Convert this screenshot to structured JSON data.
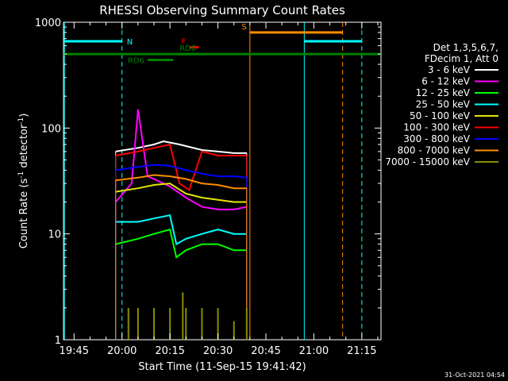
{
  "chart_data": {
    "type": "line",
    "title": "RHESSI Observing Summary Count Rates",
    "xlabel": "Start Time (11-Sep-15 19:41:42)",
    "ylabel_main": "Count Rate (s",
    "ylabel_sup1": "-1",
    "ylabel_mid": " detector",
    "ylabel_sup2": "-1",
    "ylabel_end": ")",
    "yscale": "log",
    "ylim": [
      1,
      1000
    ],
    "xlim": [
      "19:41:42",
      "21:21:00"
    ],
    "x_ticks": [
      "19:45",
      "20:00",
      "20:15",
      "20:30",
      "20:45",
      "21:00",
      "21:15"
    ],
    "y_ticks": [
      "1",
      "10",
      "100",
      "1000"
    ],
    "footer_date": "31-Oct-2021 04:54",
    "legend": {
      "header": [
        "Det 1,3,5,6,7,",
        "FDecim 1, Att 0"
      ],
      "entries": [
        {
          "label": "3 - 6 keV",
          "color": "#ffffff"
        },
        {
          "label": "6 - 12 keV",
          "color": "#ff00ff"
        },
        {
          "label": "12 - 25 keV",
          "color": "#00ff00"
        },
        {
          "label": "25 - 50 keV",
          "color": "#00ffff"
        },
        {
          "label": "50 - 100 keV",
          "color": "#e6e600"
        },
        {
          "label": "100 - 300 keV",
          "color": "#ff0000"
        },
        {
          "label": "300 - 800 keV",
          "color": "#0000ff"
        },
        {
          "label": "800 - 7000 keV",
          "color": "#ff8c00"
        },
        {
          "label": "7000 - 15000 keV",
          "color": "#8b8b00"
        }
      ]
    },
    "flags": {
      "N": {
        "label": "N",
        "color": "#00ffff",
        "spans": [
          [
            "19:42",
            "20:00"
          ],
          [
            "20:57",
            "21:15"
          ]
        ]
      },
      "S": {
        "label": "S",
        "color": "#ff8c00",
        "spans": [
          [
            "20:40",
            "21:09"
          ]
        ]
      },
      "F": {
        "label": "F",
        "color": "#ff0000",
        "spans": [
          [
            "20:21",
            "20:24"
          ]
        ]
      },
      "RD0": {
        "label": "RD0",
        "color": "#008000",
        "spans": [
          [
            "20:17",
            "20:25"
          ]
        ]
      },
      "RD6": {
        "label": "RD6",
        "color": "#008000",
        "spans": [
          [
            "20:08",
            "20:16"
          ]
        ]
      },
      "attenuator_line": {
        "color": "#008000",
        "value": 500
      }
    },
    "vertical_markers": [
      {
        "time": "19:42",
        "color": "#00ffff",
        "style": "solid"
      },
      {
        "time": "20:00",
        "color": "#00ffff",
        "style": "dashed"
      },
      {
        "time": "20:40",
        "color": "#ff8c00",
        "style": "solid"
      },
      {
        "time": "20:57",
        "color": "#00ffff",
        "style": "solid"
      },
      {
        "time": "21:09",
        "color": "#ff8c00",
        "style": "dashed"
      },
      {
        "time": "21:15",
        "color": "#00ffff",
        "style": "dashed"
      }
    ],
    "series": [
      {
        "name": "3 - 6 keV",
        "color": "#ffffff",
        "x": [
          "19:58",
          "20:05",
          "20:10",
          "20:13",
          "20:18",
          "20:25",
          "20:30",
          "20:35",
          "20:39"
        ],
        "values": [
          60,
          65,
          70,
          75,
          70,
          62,
          60,
          58,
          58
        ]
      },
      {
        "name": "6 - 12 keV",
        "color": "#ff00ff",
        "x": [
          "19:58",
          "20:03",
          "20:05",
          "20:08",
          "20:13",
          "20:15",
          "20:20",
          "20:25",
          "20:30",
          "20:35",
          "20:39"
        ],
        "values": [
          20,
          30,
          150,
          35,
          30,
          28,
          22,
          18,
          17,
          17,
          18
        ]
      },
      {
        "name": "12 - 25 keV",
        "color": "#00ff00",
        "x": [
          "19:58",
          "20:05",
          "20:10",
          "20:15",
          "20:17",
          "20:20",
          "20:25",
          "20:30",
          "20:35",
          "20:39"
        ],
        "values": [
          8,
          9,
          10,
          11,
          6,
          7,
          8,
          8,
          7,
          7
        ]
      },
      {
        "name": "25 - 50 keV",
        "color": "#00ffff",
        "x": [
          "19:58",
          "20:05",
          "20:10",
          "20:15",
          "20:17",
          "20:20",
          "20:25",
          "20:30",
          "20:35",
          "20:39"
        ],
        "values": [
          13,
          13,
          14,
          15,
          8,
          9,
          10,
          11,
          10,
          10
        ]
      },
      {
        "name": "50 - 100 keV",
        "color": "#e6e600",
        "x": [
          "19:58",
          "20:05",
          "20:10",
          "20:15",
          "20:20",
          "20:25",
          "20:30",
          "20:35",
          "20:39"
        ],
        "values": [
          25,
          27,
          29,
          30,
          24,
          22,
          21,
          20,
          20
        ]
      },
      {
        "name": "100 - 300 keV",
        "color": "#ff0000",
        "x": [
          "19:58",
          "20:05",
          "20:10",
          "20:15",
          "20:18",
          "20:21",
          "20:25",
          "20:30",
          "20:35",
          "20:39"
        ],
        "values": [
          55,
          60,
          65,
          70,
          30,
          26,
          60,
          55,
          55,
          55
        ]
      },
      {
        "name": "300 - 800 keV",
        "color": "#0000ff",
        "x": [
          "19:58",
          "20:05",
          "20:10",
          "20:15",
          "20:20",
          "20:25",
          "20:30",
          "20:35",
          "20:39"
        ],
        "values": [
          40,
          43,
          45,
          44,
          40,
          37,
          35,
          35,
          34
        ]
      },
      {
        "name": "800 - 7000 keV",
        "color": "#ff8c00",
        "x": [
          "19:58",
          "20:05",
          "20:10",
          "20:15",
          "20:20",
          "20:25",
          "20:30",
          "20:35",
          "20:39"
        ],
        "values": [
          32,
          34,
          36,
          35,
          33,
          30,
          29,
          27,
          27
        ]
      },
      {
        "name": "7000 - 15000 keV",
        "color": "#8b8b00",
        "x": [
          "20:02",
          "20:05",
          "20:10",
          "20:15",
          "20:19",
          "20:20",
          "20:25",
          "20:30",
          "20:35",
          "20:39"
        ],
        "values": [
          2,
          2,
          2,
          2,
          2.8,
          2,
          2,
          2,
          1.5,
          2
        ]
      }
    ]
  }
}
